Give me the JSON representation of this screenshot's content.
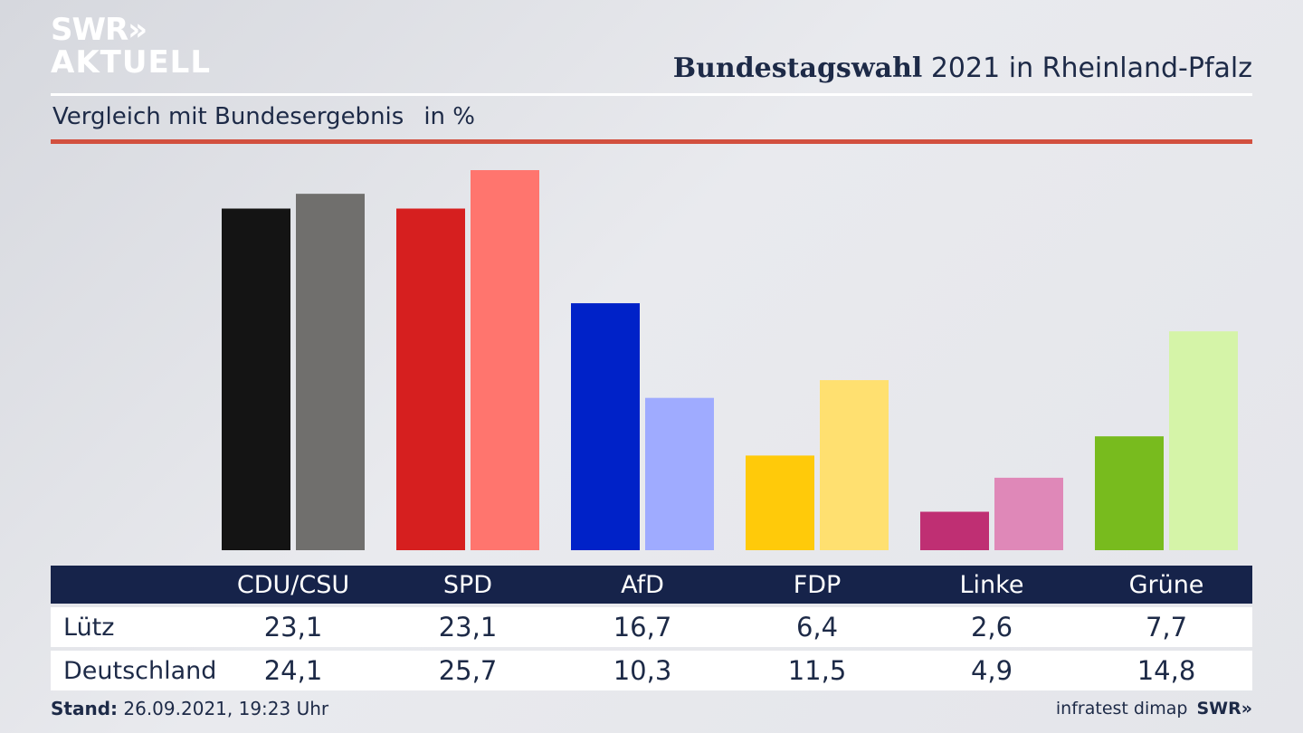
{
  "brand": {
    "line1": "SWR»",
    "line2": "AKTUELL",
    "footer_logo": "SWR»"
  },
  "header": {
    "title_bold": "Bundestagswahl",
    "title_rest": "2021 in Rheinland-Pfalz"
  },
  "subtitle": {
    "text": "Vergleich mit Bundesergebnis",
    "unit": "in %"
  },
  "footer": {
    "stand_label": "Stand:",
    "stand_value": "26.09.2021, 19:23 Uhr",
    "source": "infratest dimap"
  },
  "colors": {
    "navy": "#16234a",
    "accent_red": "#d2503f"
  },
  "chart_data": {
    "type": "bar",
    "categories": [
      "CDU/CSU",
      "SPD",
      "AfD",
      "FDP",
      "Linke",
      "Grüne"
    ],
    "series": [
      {
        "name": "Lütz",
        "values": [
          23.1,
          23.1,
          16.7,
          6.4,
          2.6,
          7.7
        ],
        "colors": [
          "#141414",
          "#d61f1f",
          "#0022c8",
          "#ffca0a",
          "#bf2f73",
          "#78bb1e"
        ]
      },
      {
        "name": "Deutschland",
        "values": [
          24.1,
          25.7,
          10.3,
          11.5,
          4.9,
          14.8
        ],
        "colors": [
          "#706f6d",
          "#ff756e",
          "#9fabff",
          "#ffe070",
          "#df88b8",
          "#d5f4a8"
        ]
      }
    ],
    "ylim": [
      0,
      25.7
    ]
  }
}
